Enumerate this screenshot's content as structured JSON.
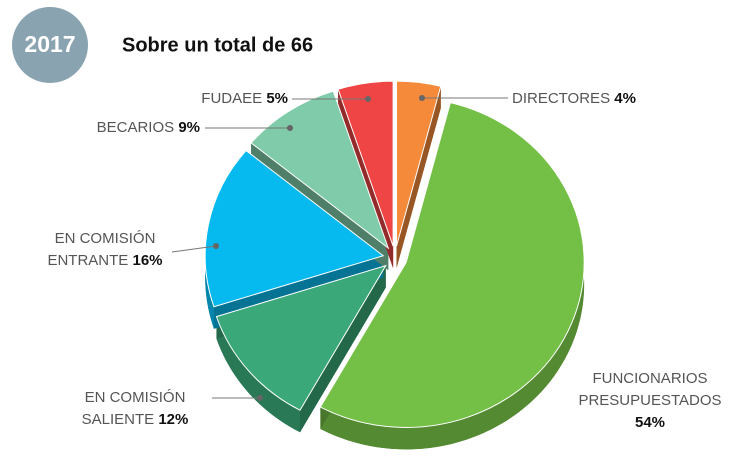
{
  "badge": "2017",
  "chart_data": {
    "type": "pie",
    "title": "Sobre un total de 66",
    "categories": [
      "DIRECTORES",
      "FUNCIONARIOS PRESUPUESTADOS",
      "EN COMISIÓN SALIENTE",
      "EN COMISIÓN ENTRANTE",
      "BECARIOS",
      "FUDAEE"
    ],
    "values": [
      4,
      54,
      12,
      16,
      9,
      5
    ],
    "value_labels": [
      "4%",
      "54%",
      "12%",
      "16%",
      "9%",
      "5%"
    ],
    "colors": [
      "#f58a3a",
      "#74bf45",
      "#3aa878",
      "#06b9ee",
      "#80cba9",
      "#ef4545"
    ]
  }
}
